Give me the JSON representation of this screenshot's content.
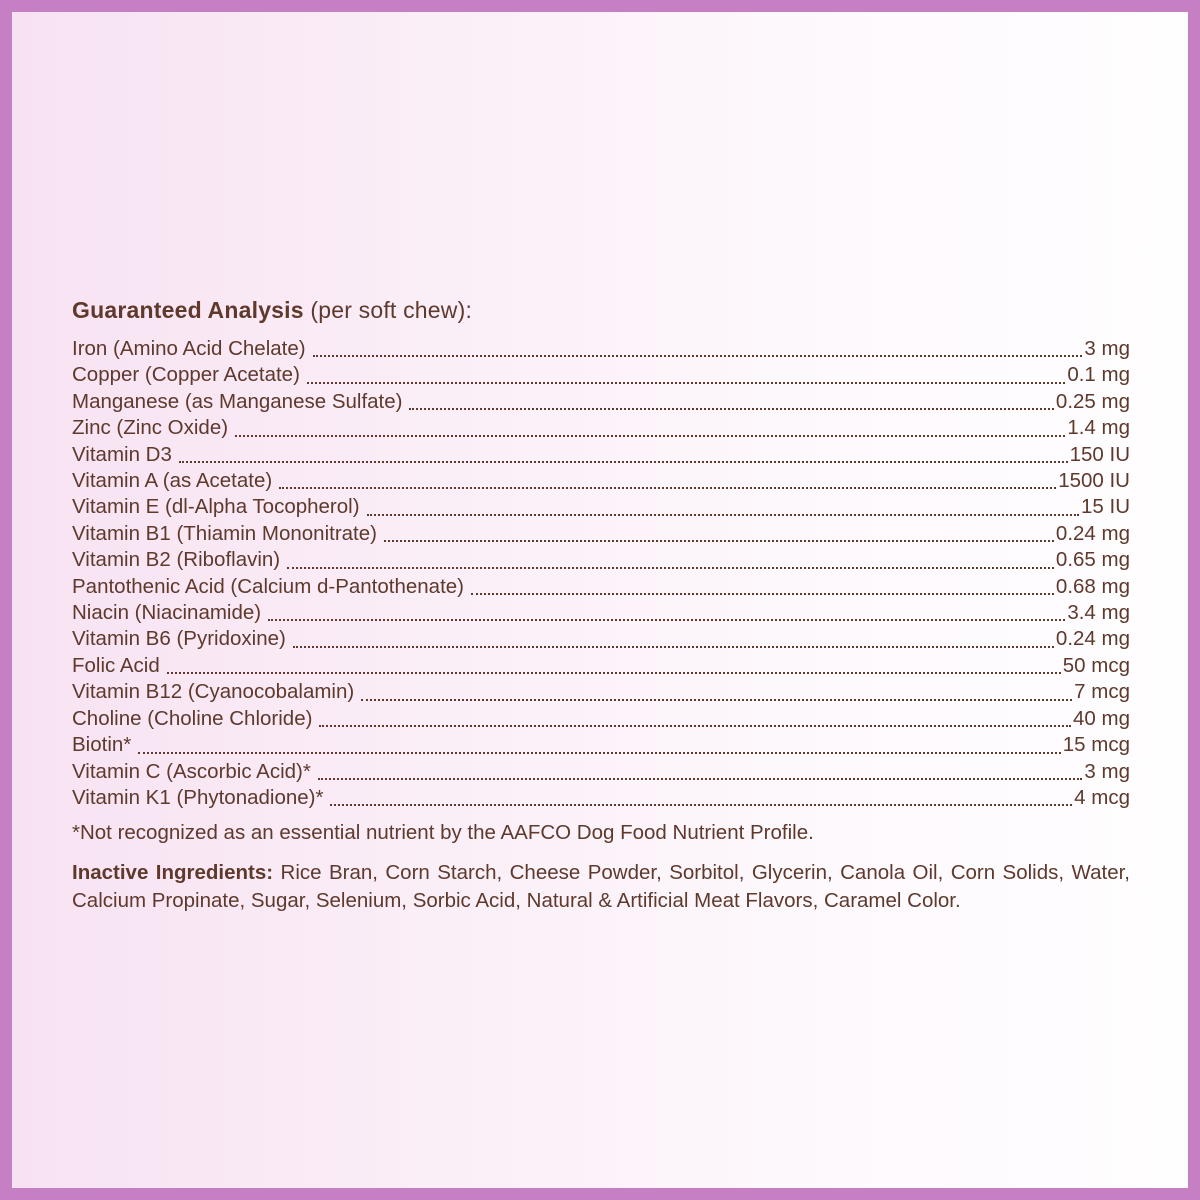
{
  "title": {
    "bold": "Guaranteed Analysis",
    "rest": " (per soft chew):"
  },
  "rows": [
    {
      "label": "Iron (Amino Acid Chelate)",
      "value": "3 mg"
    },
    {
      "label": "Copper (Copper Acetate)",
      "value": "0.1 mg"
    },
    {
      "label": "Manganese (as Manganese Sulfate)",
      "value": "0.25 mg"
    },
    {
      "label": "Zinc  (Zinc  Oxide)",
      "value": "1.4  mg"
    },
    {
      "label": "Vitamin D3",
      "value": "150 IU"
    },
    {
      "label": "Vitamin A (as Acetate)",
      "value": "1500 IU"
    },
    {
      "label": "Vitamin E (dl-Alpha Tocopherol)",
      "value": "15 IU"
    },
    {
      "label": "Vitamin B1 (Thiamin Mononitrate)",
      "value": "0.24 mg"
    },
    {
      "label": "Vitamin B2 (Riboflavin)",
      "value": "0.65 mg"
    },
    {
      "label": "Pantothenic Acid (Calcium d-Pantothenate)",
      "value": "0.68 mg"
    },
    {
      "label": "Niacin (Niacinamide)",
      "value": "3.4 mg"
    },
    {
      "label": "Vitamin B6 (Pyridoxine)",
      "value": "0.24 mg"
    },
    {
      "label": "Folic Acid",
      "value": "50 mcg"
    },
    {
      "label": "Vitamin B12 (Cyanocobalamin)",
      "value": "7 mcg"
    },
    {
      "label": "Choline (Choline Chloride)",
      "value": "40 mg"
    },
    {
      "label": "Biotin*",
      "value": "15 mcg"
    },
    {
      "label": "Vitamin C (Ascorbic Acid)*",
      "value": "3 mg"
    },
    {
      "label": "Vitamin K1 (Phytonadione)*",
      "value": "4 mcg"
    }
  ],
  "footnote": "*Not recognized as an essential nutrient by the AAFCO Dog Food Nutrient Profile.",
  "inactive": {
    "label": "Inactive  Ingredients:",
    "text": " Rice Bran, Corn Starch, Cheese Powder, Sorbitol, Glycerin, Canola Oil, Corn Solids, Water, Calcium Propinate, Sugar, Selenium, Sorbic Acid, Natural & Artificial Meat Flavors, Caramel Color."
  },
  "colors": {
    "border": "#c77fc3",
    "text": "#5e392c",
    "background_left": "#f8e2f2",
    "background_right": "#fffeff"
  }
}
